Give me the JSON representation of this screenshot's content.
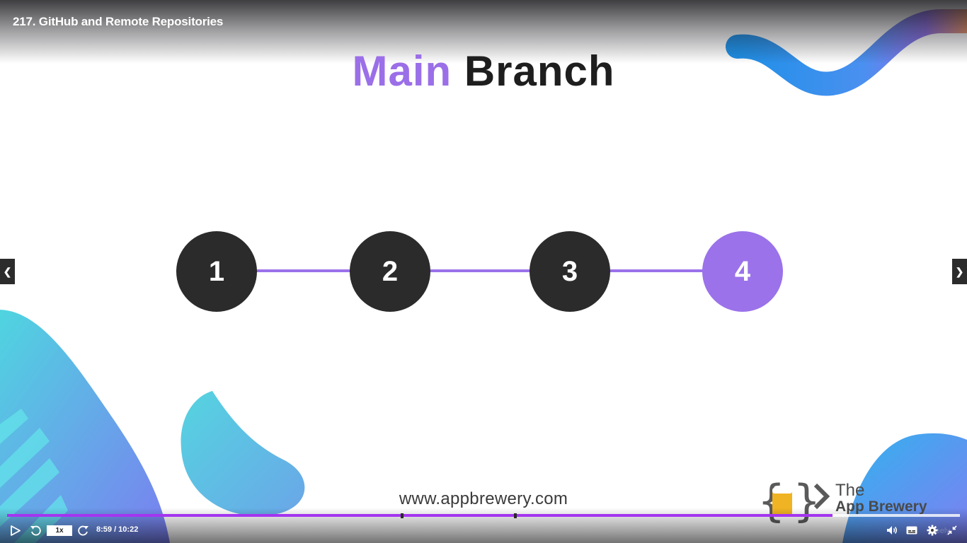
{
  "lecture": {
    "title": "217. GitHub and Remote Repositories"
  },
  "slide": {
    "title_part1": "Main",
    "title_part2": "Branch",
    "commits": [
      "1",
      "2",
      "3",
      "4"
    ],
    "active_commit": "4",
    "url": "www.appbrewery.com",
    "brand_the": "The",
    "brand_name": "App Brewery"
  },
  "player": {
    "speed": "1x",
    "time": "8:59 / 10:22",
    "progress_fraction": 0.866,
    "watermark": "reely"
  },
  "nav": {
    "prev_icon": "chevron-left-icon",
    "next_icon": "chevron-right-icon"
  },
  "colors": {
    "accent_purple": "#9b72ea",
    "commit_dark": "#2b2b2b",
    "progress": "#a435f0",
    "logo_yellow": "#f0b323"
  }
}
